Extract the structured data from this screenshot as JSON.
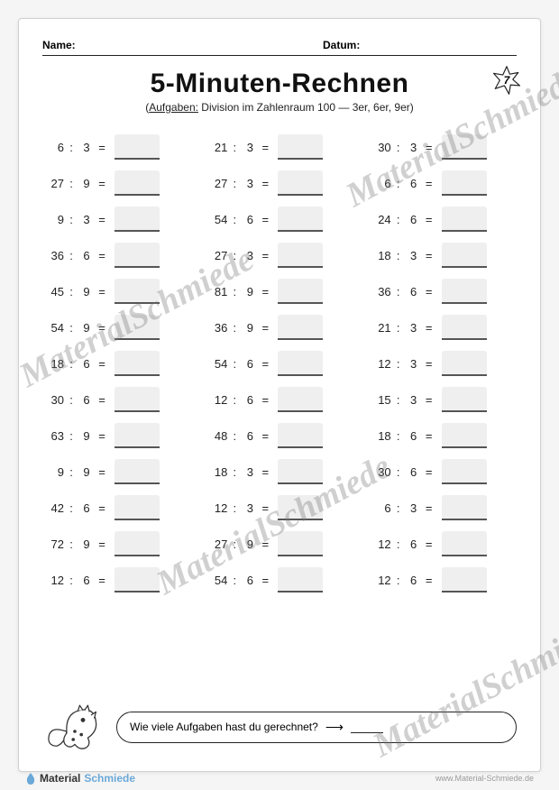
{
  "header": {
    "name_label": "Name:",
    "date_label": "Datum:"
  },
  "title": "5-Minuten-Rechnen",
  "subtitle_prefix": "Aufgaben:",
  "subtitle_rest": " Division im Zahlenraum 100 — 3er, 6er, 9er)",
  "page_number": "7",
  "operator": ":",
  "equals": "=",
  "columns": [
    [
      {
        "a": "6",
        "b": "3"
      },
      {
        "a": "27",
        "b": "9"
      },
      {
        "a": "9",
        "b": "3"
      },
      {
        "a": "36",
        "b": "6"
      },
      {
        "a": "45",
        "b": "9"
      },
      {
        "a": "54",
        "b": "9"
      },
      {
        "a": "18",
        "b": "6"
      },
      {
        "a": "30",
        "b": "6"
      },
      {
        "a": "63",
        "b": "9"
      },
      {
        "a": "9",
        "b": "9"
      },
      {
        "a": "42",
        "b": "6"
      },
      {
        "a": "72",
        "b": "9"
      },
      {
        "a": "12",
        "b": "6"
      }
    ],
    [
      {
        "a": "21",
        "b": "3"
      },
      {
        "a": "27",
        "b": "3"
      },
      {
        "a": "54",
        "b": "6"
      },
      {
        "a": "27",
        "b": "3"
      },
      {
        "a": "81",
        "b": "9"
      },
      {
        "a": "36",
        "b": "9"
      },
      {
        "a": "54",
        "b": "6"
      },
      {
        "a": "12",
        "b": "6"
      },
      {
        "a": "48",
        "b": "6"
      },
      {
        "a": "18",
        "b": "3"
      },
      {
        "a": "12",
        "b": "3"
      },
      {
        "a": "27",
        "b": "9"
      },
      {
        "a": "54",
        "b": "6"
      }
    ],
    [
      {
        "a": "30",
        "b": "3"
      },
      {
        "a": "6",
        "b": "6"
      },
      {
        "a": "24",
        "b": "6"
      },
      {
        "a": "18",
        "b": "3"
      },
      {
        "a": "36",
        "b": "6"
      },
      {
        "a": "21",
        "b": "3"
      },
      {
        "a": "12",
        "b": "3"
      },
      {
        "a": "15",
        "b": "3"
      },
      {
        "a": "18",
        "b": "6"
      },
      {
        "a": "30",
        "b": "6"
      },
      {
        "a": "6",
        "b": "3"
      },
      {
        "a": "12",
        "b": "6"
      },
      {
        "a": "12",
        "b": "6"
      }
    ]
  ],
  "footer_question": "Wie viele Aufgaben hast du gerechnet?",
  "brand_main": "Material",
  "brand_accent": "Schmiede",
  "url": "www.Material-Schmiede.de",
  "watermark": "MaterialSchmiede",
  "colors": {
    "answer_bg": "#efefef",
    "answer_border": "#555555",
    "text": "#222222",
    "brand_accent": "#6aa8d8",
    "watermark": "rgba(120,120,120,0.35)"
  }
}
